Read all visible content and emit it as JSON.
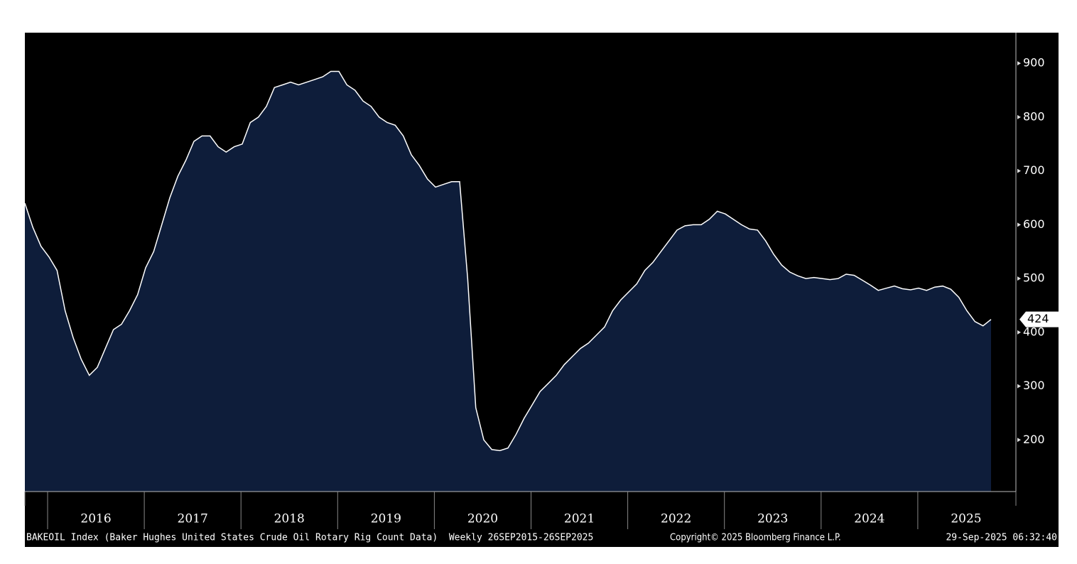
{
  "chart_data": {
    "type": "area",
    "x_axis_labels": [
      "2016",
      "2017",
      "2018",
      "2019",
      "2020",
      "2021",
      "2022",
      "2023",
      "2024",
      "2025"
    ],
    "values": [
      640,
      595,
      560,
      540,
      515,
      440,
      390,
      350,
      320,
      335,
      370,
      405,
      415,
      440,
      470,
      520,
      550,
      600,
      650,
      690,
      720,
      755,
      765,
      765,
      745,
      735,
      745,
      750,
      790,
      800,
      820,
      855,
      860,
      865,
      860,
      865,
      870,
      875,
      885,
      885,
      860,
      850,
      830,
      820,
      800,
      790,
      785,
      765,
      730,
      710,
      685,
      670,
      675,
      680,
      680,
      500,
      260,
      200,
      182,
      180,
      185,
      210,
      240,
      265,
      290,
      305,
      320,
      340,
      355,
      370,
      380,
      395,
      410,
      440,
      460,
      475,
      490,
      515,
      530,
      550,
      570,
      590,
      598,
      600,
      600,
      610,
      625,
      620,
      610,
      600,
      592,
      590,
      570,
      545,
      525,
      512,
      505,
      500,
      502,
      500,
      498,
      500,
      508,
      506,
      497,
      488,
      478,
      482,
      486,
      481,
      479,
      482,
      478,
      484,
      486,
      480,
      465,
      440,
      420,
      412,
      424
    ],
    "color": "#0e1d3a",
    "line_color": "#ffffff",
    "ylim": [
      104,
      957
    ],
    "yticks": [
      200,
      300,
      400,
      500,
      600,
      700,
      800,
      900
    ],
    "footer": {
      "left": "BAKEOIL Index (Baker Hughes United States Crude Oil Rotary Rig Count Data)  Weekly 26SEP2015-26SEP2025",
      "center": "Copyright© 2025 Bloomberg Finance L.P.",
      "right": "29-Sep-2025 06:32:40"
    }
  }
}
